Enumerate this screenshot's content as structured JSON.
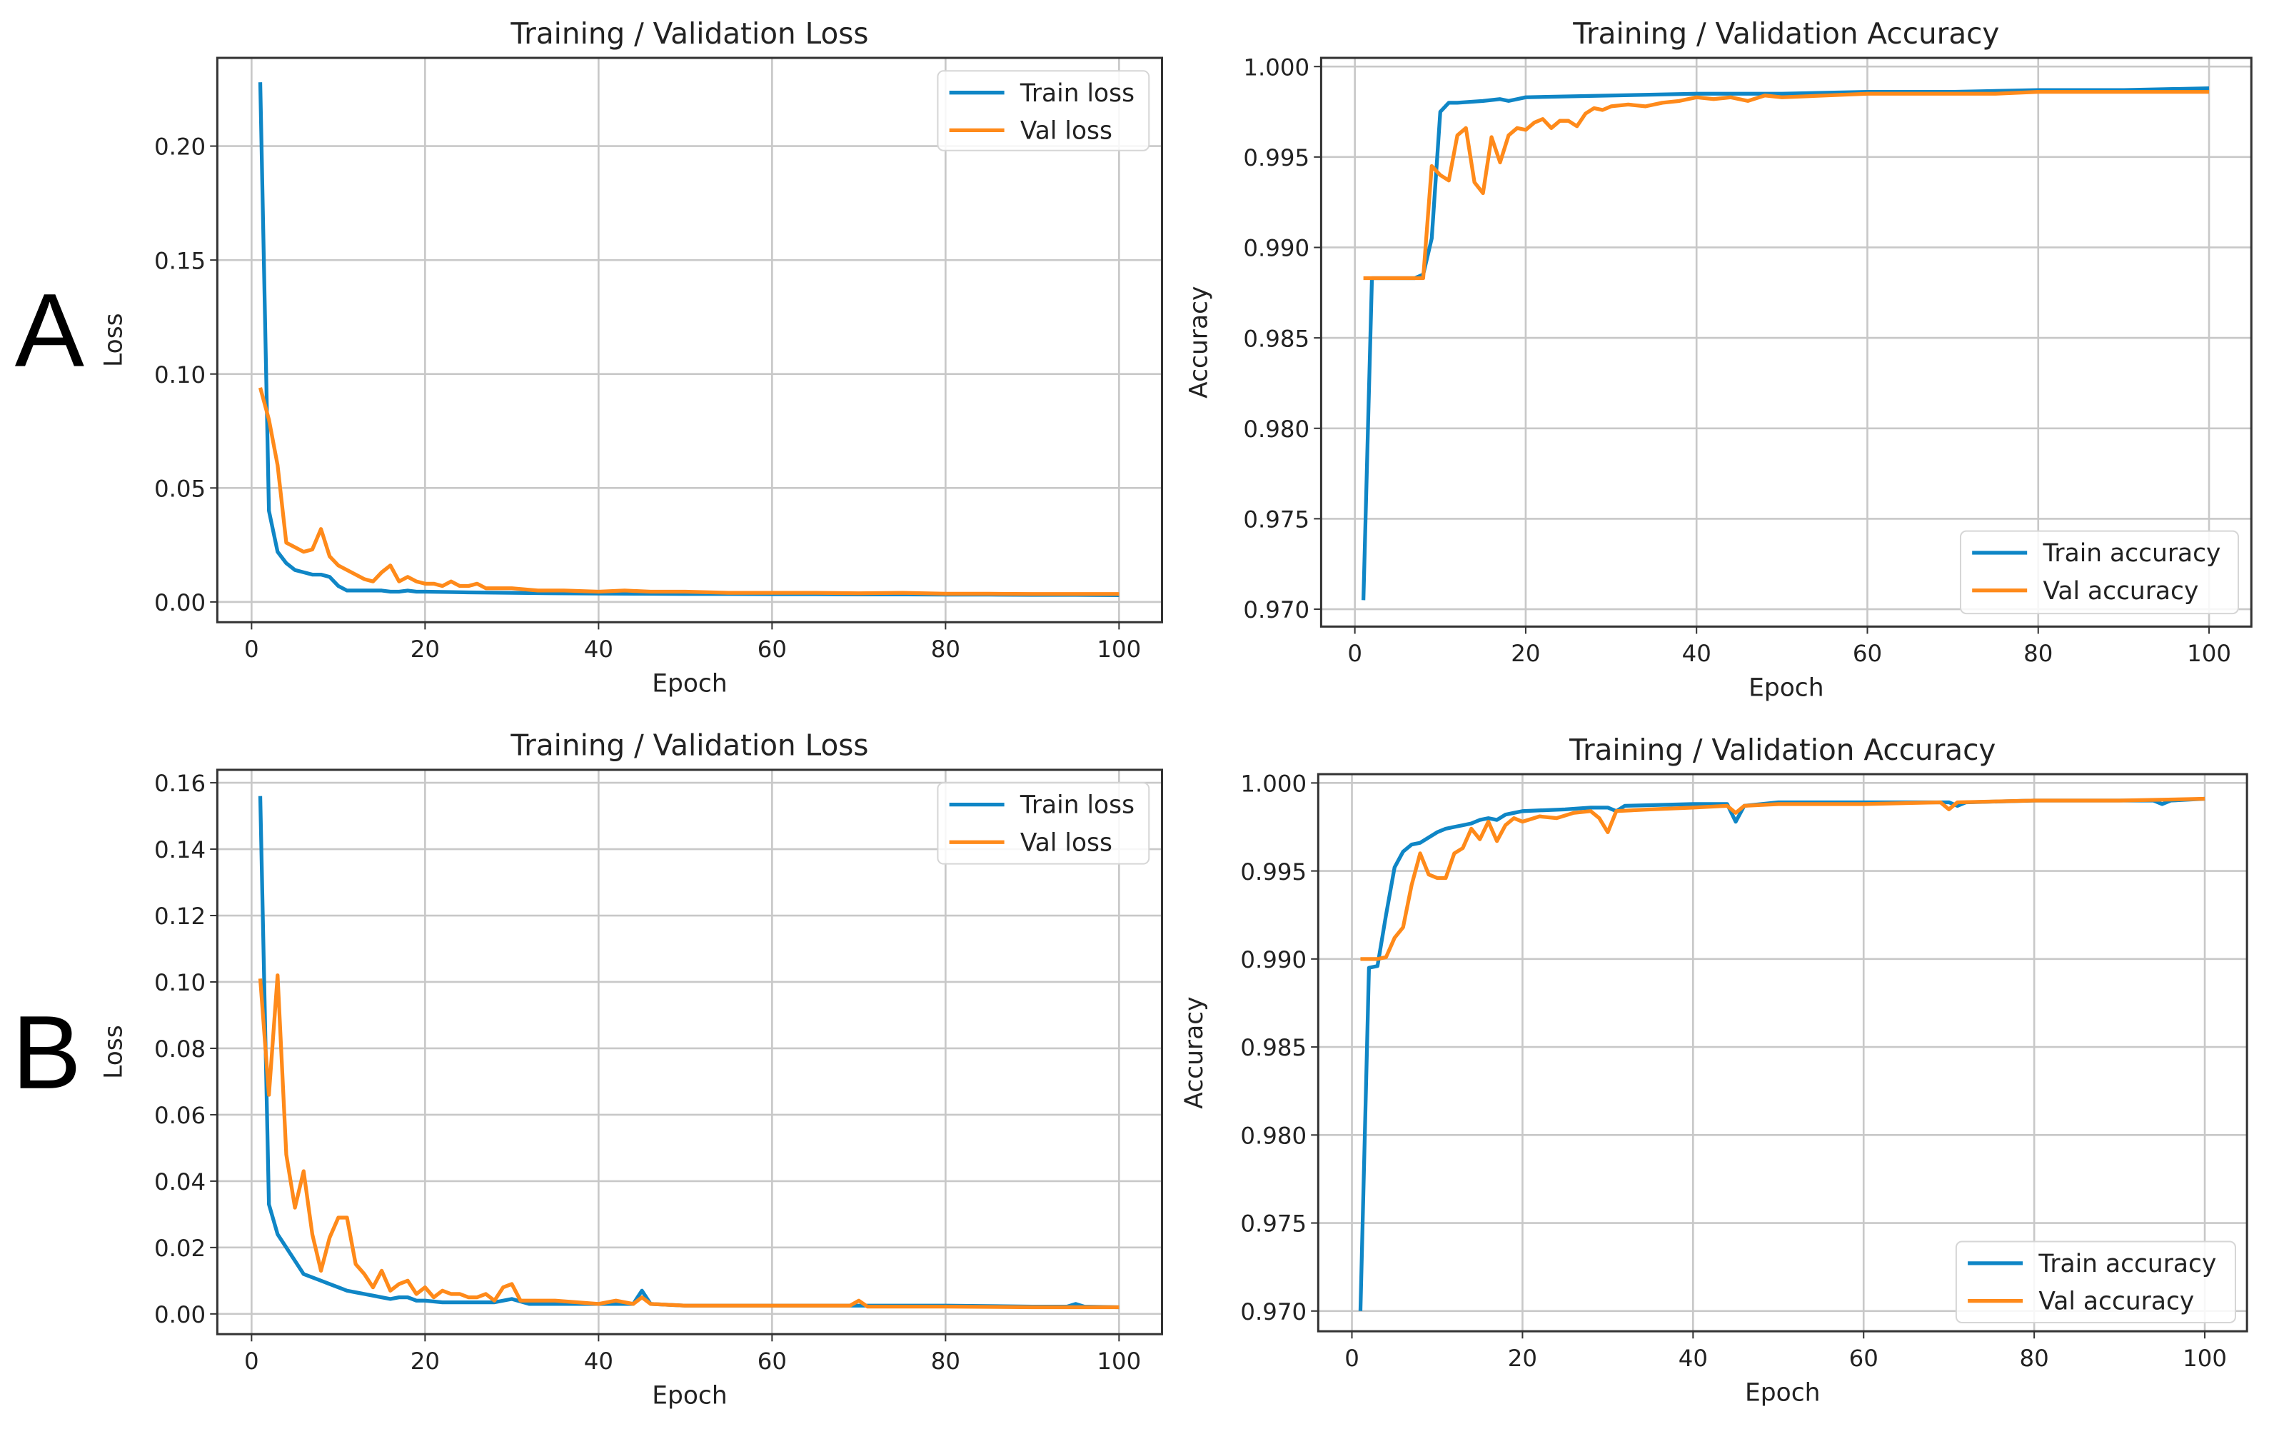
{
  "panels": [
    "A",
    "B"
  ],
  "colors": {
    "train": "#0f86c6",
    "val": "#ff8a1a",
    "grid": "#c8c8c8",
    "axis": "#333333"
  },
  "chart_data": [
    {
      "id": "A-loss",
      "type": "line",
      "panel": "A",
      "title": "Training / Validation Loss",
      "xlabel": "Epoch",
      "ylabel": "Loss",
      "xlim": [
        -3.95,
        104.95
      ],
      "ylim": [
        -0.0089,
        0.2387
      ],
      "grid": true,
      "legend": "top-right",
      "xticks": [
        0,
        20,
        40,
        60,
        80,
        100
      ],
      "xtick_labels": [
        "0",
        "20",
        "40",
        "60",
        "80",
        "100"
      ],
      "yticks": [
        0,
        0.05,
        0.1,
        0.15,
        0.2
      ],
      "ytick_labels": [
        "0.00",
        "0.05",
        "0.10",
        "0.15",
        "0.20"
      ],
      "series": [
        {
          "name": "Train loss",
          "color": "#0f86c6",
          "x": [
            1,
            2,
            3,
            4,
            5,
            6,
            7,
            8,
            9,
            10,
            11,
            12,
            13,
            14,
            15,
            16,
            17,
            18,
            19,
            20,
            25,
            30,
            35,
            40,
            45,
            50,
            55,
            60,
            65,
            70,
            75,
            80,
            85,
            90,
            95,
            100
          ],
          "y": [
            0.228,
            0.04,
            0.022,
            0.017,
            0.014,
            0.013,
            0.012,
            0.012,
            0.011,
            0.007,
            0.005,
            0.005,
            0.005,
            0.005,
            0.005,
            0.0045,
            0.0045,
            0.005,
            0.0045,
            0.0045,
            0.0042,
            0.004,
            0.0038,
            0.0037,
            0.0036,
            0.0035,
            0.0035,
            0.0034,
            0.0034,
            0.0033,
            0.0033,
            0.0032,
            0.0032,
            0.0031,
            0.0031,
            0.003
          ]
        },
        {
          "name": "Val loss",
          "color": "#ff8a1a",
          "x": [
            1,
            2,
            3,
            4,
            5,
            6,
            7,
            8,
            9,
            10,
            11,
            12,
            13,
            14,
            15,
            16,
            17,
            18,
            19,
            20,
            21,
            22,
            23,
            24,
            25,
            26,
            27,
            28,
            29,
            30,
            33,
            36,
            40,
            43,
            46,
            50,
            55,
            60,
            65,
            70,
            75,
            80,
            85,
            90,
            95,
            100
          ],
          "y": [
            0.094,
            0.08,
            0.06,
            0.026,
            0.024,
            0.022,
            0.023,
            0.032,
            0.02,
            0.016,
            0.014,
            0.012,
            0.01,
            0.009,
            0.013,
            0.016,
            0.009,
            0.011,
            0.009,
            0.008,
            0.008,
            0.007,
            0.009,
            0.007,
            0.007,
            0.008,
            0.006,
            0.006,
            0.006,
            0.006,
            0.005,
            0.005,
            0.0045,
            0.005,
            0.0045,
            0.0045,
            0.004,
            0.004,
            0.004,
            0.0038,
            0.004,
            0.0036,
            0.0036,
            0.0035,
            0.0035,
            0.0035
          ]
        }
      ]
    },
    {
      "id": "A-acc",
      "type": "line",
      "panel": "A",
      "title": "Training / Validation Accuracy",
      "xlabel": "Epoch",
      "ylabel": "Accuracy",
      "xlim": [
        -3.95,
        104.95
      ],
      "ylim": [
        0.96904,
        1.00048
      ],
      "grid": true,
      "legend": "bottom-right",
      "xticks": [
        0,
        20,
        40,
        60,
        80,
        100
      ],
      "xtick_labels": [
        "0",
        "20",
        "40",
        "60",
        "80",
        "100"
      ],
      "yticks": [
        0.97,
        0.975,
        0.98,
        0.985,
        0.99,
        0.995,
        1.0
      ],
      "ytick_labels": [
        "0.970",
        "0.975",
        "0.980",
        "0.985",
        "0.990",
        "0.995",
        "1.000"
      ],
      "series": [
        {
          "name": "Train accuracy",
          "color": "#0f86c6",
          "x": [
            1,
            2,
            3,
            5,
            7,
            8,
            9,
            10,
            11,
            12,
            15,
            17,
            18,
            19,
            20,
            30,
            40,
            50,
            60,
            70,
            80,
            90,
            100
          ],
          "y": [
            0.9705,
            0.9883,
            0.9883,
            0.9883,
            0.9883,
            0.9885,
            0.9905,
            0.9975,
            0.998,
            0.998,
            0.9981,
            0.9982,
            0.9981,
            0.9982,
            0.9983,
            0.9984,
            0.9985,
            0.9985,
            0.9986,
            0.9986,
            0.9987,
            0.9987,
            0.9988
          ]
        },
        {
          "name": "Val accuracy",
          "color": "#ff8a1a",
          "x": [
            1,
            2,
            3,
            4,
            5,
            6,
            7,
            8,
            9,
            10,
            11,
            12,
            13,
            14,
            15,
            16,
            17,
            18,
            19,
            20,
            21,
            22,
            23,
            24,
            25,
            26,
            27,
            28,
            29,
            30,
            32,
            34,
            36,
            38,
            40,
            42,
            44,
            46,
            48,
            50,
            55,
            60,
            65,
            70,
            75,
            80,
            90,
            100
          ],
          "y": [
            0.9883,
            0.9883,
            0.9883,
            0.9883,
            0.9883,
            0.9883,
            0.9883,
            0.9883,
            0.9945,
            0.994,
            0.9937,
            0.9962,
            0.9966,
            0.9936,
            0.993,
            0.9961,
            0.9947,
            0.9962,
            0.9966,
            0.9965,
            0.9969,
            0.9971,
            0.9966,
            0.997,
            0.997,
            0.9967,
            0.9974,
            0.9977,
            0.9976,
            0.9978,
            0.9979,
            0.9978,
            0.998,
            0.9981,
            0.9983,
            0.9982,
            0.9983,
            0.9981,
            0.9984,
            0.9983,
            0.9984,
            0.9985,
            0.9985,
            0.9985,
            0.9985,
            0.9986,
            0.9986,
            0.9986
          ]
        }
      ]
    },
    {
      "id": "B-loss",
      "type": "line",
      "panel": "B",
      "title": "Training / Validation Loss",
      "xlabel": "Epoch",
      "ylabel": "Loss",
      "xlim": [
        -3.95,
        104.95
      ],
      "ylim": [
        -0.0061,
        0.1639
      ],
      "grid": true,
      "legend": "top-right",
      "xticks": [
        0,
        20,
        40,
        60,
        80,
        100
      ],
      "xtick_labels": [
        "0",
        "20",
        "40",
        "60",
        "80",
        "100"
      ],
      "yticks": [
        0,
        0.02,
        0.04,
        0.06,
        0.08,
        0.1,
        0.12,
        0.14,
        0.16
      ],
      "ytick_labels": [
        "0.00",
        "0.02",
        "0.04",
        "0.06",
        "0.08",
        "0.10",
        "0.12",
        "0.14",
        "0.16"
      ],
      "series": [
        {
          "name": "Train loss",
          "color": "#0f86c6",
          "x": [
            1,
            2,
            3,
            4,
            5,
            6,
            7,
            8,
            9,
            10,
            11,
            12,
            13,
            14,
            15,
            16,
            17,
            18,
            19,
            20,
            22,
            25,
            28,
            30,
            32,
            36,
            40,
            44,
            45,
            46,
            50,
            60,
            70,
            80,
            90,
            94,
            95,
            96,
            100
          ],
          "y": [
            0.156,
            0.033,
            0.024,
            0.02,
            0.016,
            0.012,
            0.011,
            0.01,
            0.009,
            0.008,
            0.007,
            0.0065,
            0.006,
            0.0055,
            0.005,
            0.0045,
            0.005,
            0.005,
            0.004,
            0.004,
            0.0035,
            0.0035,
            0.0035,
            0.0045,
            0.003,
            0.003,
            0.003,
            0.003,
            0.007,
            0.003,
            0.0025,
            0.0025,
            0.0025,
            0.0025,
            0.0022,
            0.0022,
            0.003,
            0.0022,
            0.002
          ]
        },
        {
          "name": "Val loss",
          "color": "#ff8a1a",
          "x": [
            1,
            2,
            3,
            4,
            5,
            6,
            7,
            8,
            9,
            10,
            11,
            12,
            13,
            14,
            15,
            16,
            17,
            18,
            19,
            20,
            21,
            22,
            23,
            24,
            25,
            26,
            27,
            28,
            29,
            30,
            31,
            35,
            40,
            42,
            44,
            45,
            46,
            50,
            60,
            69,
            70,
            71,
            80,
            90,
            100
          ],
          "y": [
            0.101,
            0.066,
            0.102,
            0.048,
            0.032,
            0.043,
            0.024,
            0.013,
            0.023,
            0.029,
            0.029,
            0.015,
            0.012,
            0.008,
            0.013,
            0.007,
            0.009,
            0.01,
            0.006,
            0.008,
            0.005,
            0.007,
            0.006,
            0.006,
            0.005,
            0.005,
            0.006,
            0.004,
            0.008,
            0.009,
            0.004,
            0.004,
            0.003,
            0.004,
            0.003,
            0.005,
            0.003,
            0.0025,
            0.0025,
            0.0025,
            0.004,
            0.0022,
            0.0022,
            0.002,
            0.002
          ]
        }
      ]
    },
    {
      "id": "B-acc",
      "type": "line",
      "panel": "B",
      "title": "Training / Validation Accuracy",
      "xlabel": "Epoch",
      "ylabel": "Accuracy",
      "xlim": [
        -3.95,
        104.95
      ],
      "ylim": [
        0.96885,
        1.0005
      ],
      "grid": true,
      "legend": "bottom-right",
      "xticks": [
        0,
        20,
        40,
        60,
        80,
        100
      ],
      "xtick_labels": [
        "0",
        "20",
        "40",
        "60",
        "80",
        "100"
      ],
      "yticks": [
        0.97,
        0.975,
        0.98,
        0.985,
        0.99,
        0.995,
        1.0
      ],
      "ytick_labels": [
        "0.970",
        "0.975",
        "0.980",
        "0.985",
        "0.990",
        "0.995",
        "1.000"
      ],
      "series": [
        {
          "name": "Train accuracy",
          "color": "#0f86c6",
          "x": [
            1,
            2,
            3,
            4,
            5,
            6,
            7,
            8,
            9,
            10,
            11,
            12,
            13,
            14,
            15,
            16,
            17,
            18,
            19,
            20,
            25,
            28,
            30,
            31,
            32,
            40,
            44,
            45,
            46,
            50,
            70,
            71,
            72,
            80,
            94,
            95,
            96,
            100
          ],
          "y": [
            0.97,
            0.9895,
            0.9896,
            0.9925,
            0.9952,
            0.9961,
            0.9965,
            0.9966,
            0.9969,
            0.9972,
            0.9974,
            0.9975,
            0.9976,
            0.9977,
            0.9979,
            0.998,
            0.9979,
            0.9982,
            0.9983,
            0.9984,
            0.9985,
            0.9986,
            0.9986,
            0.9984,
            0.9987,
            0.9988,
            0.9988,
            0.9978,
            0.9987,
            0.9989,
            0.9989,
            0.9987,
            0.9989,
            0.999,
            0.999,
            0.9988,
            0.999,
            0.9991
          ]
        },
        {
          "name": "Val accuracy",
          "color": "#ff8a1a",
          "x": [
            1,
            2,
            3,
            4,
            5,
            6,
            7,
            8,
            9,
            10,
            11,
            12,
            13,
            14,
            15,
            16,
            17,
            18,
            19,
            20,
            22,
            24,
            26,
            28,
            29,
            30,
            31,
            35,
            40,
            44,
            45,
            46,
            50,
            60,
            69,
            70,
            71,
            80,
            90,
            100
          ],
          "y": [
            0.99,
            0.99,
            0.99,
            0.9901,
            0.9912,
            0.9918,
            0.9942,
            0.996,
            0.9948,
            0.9946,
            0.9946,
            0.996,
            0.9963,
            0.9974,
            0.9968,
            0.9978,
            0.9967,
            0.9976,
            0.998,
            0.9978,
            0.9981,
            0.998,
            0.9983,
            0.9984,
            0.998,
            0.9972,
            0.9984,
            0.9985,
            0.9986,
            0.9987,
            0.9983,
            0.9987,
            0.9988,
            0.9988,
            0.9989,
            0.9985,
            0.9989,
            0.999,
            0.999,
            0.9991
          ]
        }
      ]
    }
  ]
}
